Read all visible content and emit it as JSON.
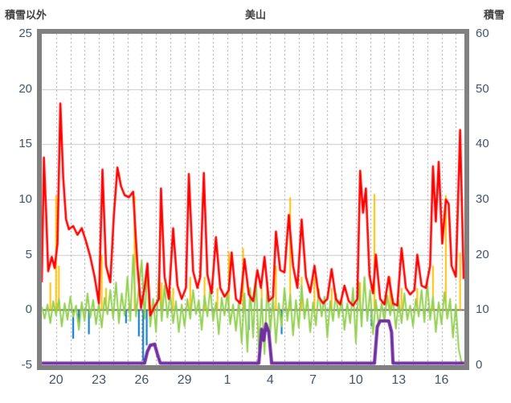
{
  "titles": {
    "left_axis": "積雪以外",
    "chart": "美山",
    "right_axis": "積雪"
  },
  "chart_data": {
    "type": "line",
    "title": "美山",
    "grid": {
      "horizontal": true,
      "vertical_dashed_per_day": true
    },
    "legend": "none",
    "left_axis": {
      "label": "積雪以外",
      "min": -5,
      "max": 25,
      "ticks": [
        25,
        20,
        15,
        10,
        5,
        0,
        -5
      ]
    },
    "right_axis": {
      "label": "積雪",
      "min": 0,
      "max": 60,
      "ticks": [
        60,
        50,
        40,
        30,
        20,
        10,
        0
      ]
    },
    "x_axis": {
      "min": 19,
      "max": 48.6,
      "tick_labels": [
        "20",
        "23",
        "26",
        "29",
        "1",
        "4",
        "7",
        "10",
        "13",
        "16"
      ],
      "tick_positions": [
        20,
        23,
        26,
        29,
        32,
        35,
        38,
        41,
        44,
        47
      ],
      "gridline_step": 1
    },
    "colors": {
      "red": "#FF0000",
      "green": "#92D050",
      "orange": "#FFC000",
      "blue": "#0070C0",
      "purple": "#7030A0"
    },
    "series": [
      {
        "name": "orange-spikes",
        "type": "vlines",
        "axis": "left",
        "color": "#FFC000",
        "width": 2,
        "points": [
          [
            19.6,
            2.5
          ],
          [
            20.0,
            10.4
          ],
          [
            20.2,
            4
          ],
          [
            23.2,
            5
          ],
          [
            23.5,
            2
          ],
          [
            25.5,
            10.3
          ],
          [
            26.5,
            2
          ],
          [
            27.4,
            2.5
          ],
          [
            28.2,
            2
          ],
          [
            29.4,
            3
          ],
          [
            30.4,
            3
          ],
          [
            31.3,
            2
          ],
          [
            32.1,
            5.3
          ],
          [
            33.1,
            5.6
          ],
          [
            34.4,
            2
          ],
          [
            35.4,
            4
          ],
          [
            36.4,
            10.2
          ],
          [
            37.2,
            3
          ],
          [
            38.1,
            3
          ],
          [
            39.3,
            2
          ],
          [
            41.3,
            2.5
          ],
          [
            42.3,
            10.5
          ],
          [
            43.4,
            3
          ],
          [
            44.2,
            2
          ],
          [
            45.3,
            2
          ],
          [
            46.4,
            4
          ],
          [
            47.3,
            10.4
          ],
          [
            48.3,
            5.2
          ]
        ]
      },
      {
        "name": "blue-spikes",
        "type": "vlines",
        "axis": "left",
        "color": "#0070C0",
        "width": 2,
        "points": [
          [
            21.2,
            -2.6
          ],
          [
            21.6,
            -1.4
          ],
          [
            22.3,
            -2.2
          ],
          [
            24.9,
            -1.2
          ],
          [
            25.8,
            -2.4
          ],
          [
            26.1,
            -4.6
          ],
          [
            26.35,
            -3.2
          ],
          [
            33.5,
            -1.8
          ],
          [
            35.8,
            -2.2
          ],
          [
            42.1,
            -1.5
          ]
        ]
      },
      {
        "name": "green-series",
        "type": "sampled-line",
        "axis": "left",
        "color": "#92D050",
        "width": 2,
        "x0": 19,
        "dx": 0.2,
        "values": [
          0.3,
          -0.8,
          0.5,
          -1.2,
          0.8,
          -0.5,
          1.0,
          -1.5,
          0.6,
          -0.9,
          1.2,
          -0.6,
          0.4,
          -1.8,
          0.7,
          -1.0,
          1.5,
          -0.7,
          0.9,
          -1.3,
          0.6,
          -1.6,
          1.1,
          -0.4,
          1.8,
          -0.8,
          2.5,
          -1.2,
          1.5,
          -0.5,
          3.0,
          -1.0,
          5.0,
          -0.6,
          2.0,
          4.5,
          -0.8,
          3.5,
          -1.5,
          1.0,
          -2.0,
          3.0,
          -1.0,
          2.2,
          -0.7,
          1.5,
          -1.2,
          0.8,
          -2.0,
          0.5,
          -1.5,
          1.0,
          -0.8,
          1.8,
          -0.4,
          0.9,
          -1.8,
          1.3,
          -0.6,
          2.0,
          -1.0,
          0.7,
          -2.2,
          1.1,
          -0.5,
          1.6,
          -1.3,
          0.5,
          -1.9,
          0.8,
          -3.0,
          1.5,
          -3.8,
          2.0,
          -2.5,
          3.0,
          -3.5,
          1.0,
          -4.0,
          2.5,
          -2.0,
          1.2,
          -3.0,
          0.6,
          -1.5,
          2.0,
          -1.0,
          1.4,
          -2.3,
          0.9,
          -1.6,
          2.2,
          -0.8,
          1.0,
          -2.0,
          0.7,
          -1.4,
          1.9,
          -0.6,
          1.2,
          -2.5,
          0.8,
          -1.0,
          1.5,
          -0.7,
          1.0,
          -1.8,
          0.6,
          -1.2,
          2.0,
          -3.0,
          2.5,
          -1.5,
          3.0,
          -1.0,
          1.8,
          -2.2,
          0.9,
          -1.5,
          0.6,
          -1.0,
          1.3,
          -0.5,
          1.0,
          -1.7,
          0.8,
          -1.2,
          1.5,
          -0.9,
          0.4,
          -1.5,
          1.0,
          -0.6,
          1.8,
          -1.1,
          2.5,
          -0.9,
          1.2,
          -2.0,
          0.7,
          -1.3,
          1.6,
          -0.8,
          1.0,
          -2.5,
          0.5,
          -3.5,
          -4.8
        ]
      },
      {
        "name": "red-series",
        "type": "line",
        "axis": "left",
        "color": "#FF0000",
        "width": 2.6,
        "points": [
          [
            19.0,
            2.5
          ],
          [
            19.15,
            13.8
          ],
          [
            19.3,
            9
          ],
          [
            19.45,
            3.5
          ],
          [
            19.7,
            4.8
          ],
          [
            19.9,
            3.8
          ],
          [
            20.1,
            6
          ],
          [
            20.3,
            18.7
          ],
          [
            20.5,
            12
          ],
          [
            20.7,
            8.2
          ],
          [
            20.9,
            7.3
          ],
          [
            21.2,
            7.6
          ],
          [
            21.5,
            6.8
          ],
          [
            21.8,
            7.4
          ],
          [
            22.1,
            6.2
          ],
          [
            22.4,
            4.8
          ],
          [
            22.7,
            3
          ],
          [
            23.0,
            0.6
          ],
          [
            23.25,
            12.7
          ],
          [
            23.5,
            4
          ],
          [
            23.8,
            2.5
          ],
          [
            24.05,
            8.6
          ],
          [
            24.3,
            12.9
          ],
          [
            24.55,
            11.2
          ],
          [
            24.8,
            10.4
          ],
          [
            25.1,
            10.2
          ],
          [
            25.4,
            10.7
          ],
          [
            25.7,
            4
          ],
          [
            25.95,
            0.2
          ],
          [
            26.2,
            2
          ],
          [
            26.4,
            4.2
          ],
          [
            26.6,
            -0.5
          ],
          [
            26.9,
            0.3
          ],
          [
            27.2,
            1
          ],
          [
            27.35,
            11
          ],
          [
            27.6,
            3
          ],
          [
            27.9,
            1
          ],
          [
            28.2,
            7.4
          ],
          [
            28.5,
            2.2
          ],
          [
            28.8,
            1
          ],
          [
            29.1,
            2
          ],
          [
            29.3,
            12.3
          ],
          [
            29.6,
            3.5
          ],
          [
            29.9,
            2
          ],
          [
            30.1,
            3
          ],
          [
            30.35,
            12.4
          ],
          [
            30.6,
            3.2
          ],
          [
            30.9,
            1.5
          ],
          [
            31.2,
            6.6
          ],
          [
            31.5,
            2
          ],
          [
            31.8,
            1.2
          ],
          [
            32.1,
            1.8
          ],
          [
            32.3,
            5.2
          ],
          [
            32.6,
            1
          ],
          [
            32.9,
            0.6
          ],
          [
            33.2,
            4.6
          ],
          [
            33.5,
            1.4
          ],
          [
            33.8,
            0.8
          ],
          [
            34.1,
            3.6
          ],
          [
            34.35,
            2
          ],
          [
            34.6,
            4.8
          ],
          [
            34.9,
            0.8
          ],
          [
            35.2,
            1.2
          ],
          [
            35.4,
            7.1
          ],
          [
            35.7,
            3.6
          ],
          [
            36.0,
            3.4
          ],
          [
            36.3,
            8.6
          ],
          [
            36.6,
            4
          ],
          [
            36.9,
            2
          ],
          [
            37.2,
            8.2
          ],
          [
            37.5,
            3
          ],
          [
            37.8,
            1.6
          ],
          [
            38.1,
            4
          ],
          [
            38.4,
            1.2
          ],
          [
            38.7,
            0.6
          ],
          [
            39.0,
            1
          ],
          [
            39.3,
            3.7
          ],
          [
            39.6,
            1
          ],
          [
            39.9,
            0.5
          ],
          [
            40.2,
            2.2
          ],
          [
            40.5,
            0.8
          ],
          [
            40.8,
            0.4
          ],
          [
            41.1,
            1
          ],
          [
            41.3,
            12.6
          ],
          [
            41.5,
            8.8
          ],
          [
            41.7,
            11
          ],
          [
            41.95,
            3.2
          ],
          [
            42.2,
            1.5
          ],
          [
            42.4,
            5
          ],
          [
            42.7,
            1
          ],
          [
            43.0,
            0.5
          ],
          [
            43.3,
            3
          ],
          [
            43.6,
            0.6
          ],
          [
            43.9,
            0.4
          ],
          [
            44.2,
            5.6
          ],
          [
            44.5,
            2
          ],
          [
            44.8,
            1.4
          ],
          [
            45.1,
            1.8
          ],
          [
            45.3,
            5
          ],
          [
            45.6,
            2.2
          ],
          [
            45.9,
            2
          ],
          [
            46.2,
            4
          ],
          [
            46.4,
            13
          ],
          [
            46.6,
            8
          ],
          [
            46.8,
            13.4
          ],
          [
            47.05,
            6
          ],
          [
            47.3,
            10
          ],
          [
            47.5,
            9.6
          ],
          [
            47.7,
            4
          ],
          [
            48.0,
            3
          ],
          [
            48.3,
            16.3
          ],
          [
            48.55,
            2.8
          ]
        ]
      },
      {
        "name": "purple-series",
        "type": "line",
        "axis": "right",
        "color": "#7030A0",
        "width": 4,
        "points": [
          [
            19,
            0
          ],
          [
            26.2,
            0
          ],
          [
            26.4,
            2.5
          ],
          [
            26.6,
            3.6
          ],
          [
            26.9,
            3.8
          ],
          [
            27.1,
            2
          ],
          [
            27.3,
            0
          ],
          [
            34.2,
            0
          ],
          [
            34.4,
            6.5
          ],
          [
            34.55,
            4.5
          ],
          [
            34.7,
            7.5
          ],
          [
            34.9,
            6
          ],
          [
            35.1,
            0
          ],
          [
            42.3,
            0
          ],
          [
            42.5,
            7
          ],
          [
            42.7,
            8
          ],
          [
            43.3,
            8
          ],
          [
            43.5,
            6
          ],
          [
            43.6,
            0
          ],
          [
            48.6,
            0
          ]
        ]
      }
    ]
  }
}
